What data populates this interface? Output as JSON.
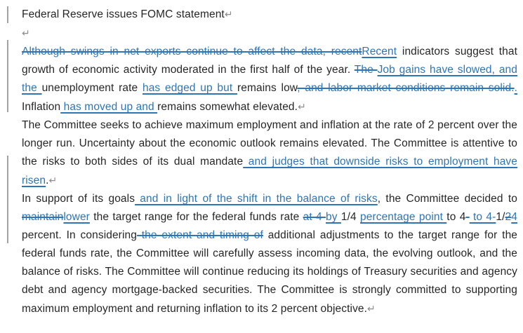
{
  "colors": {
    "text": "#262626",
    "tracked_change": "#2e75b6",
    "paragraph_mark": "#8c8c8c",
    "change_bar": "#a3a3a3",
    "background": "#ffffff"
  },
  "document": {
    "title_text": "Federal Reserve issues FOMC statement",
    "paragraph_mark_glyph": "↵",
    "paragraphs": [
      {
        "name": "title",
        "justify": false,
        "runs": [
          {
            "t": "normal",
            "text": "Federal Reserve issues FOMC statement"
          },
          {
            "t": "mark",
            "text": "↵"
          }
        ]
      },
      {
        "name": "spacer",
        "justify": false,
        "runs": [
          {
            "t": "mark",
            "text": "↵"
          }
        ]
      },
      {
        "name": "body-1",
        "justify": true,
        "runs": [
          {
            "t": "deleted",
            "text": "Although swings in net exports continue to affect the data, recent"
          },
          {
            "t": "inserted",
            "text": "Recent"
          },
          {
            "t": "normal",
            "text": " indicators suggest that growth of economic activity moderated in the first half of the year. "
          },
          {
            "t": "deleted",
            "text": "The "
          },
          {
            "t": "inserted",
            "text": "Job gains have slowed, and the "
          },
          {
            "t": "normal",
            "text": "unemployment rate "
          },
          {
            "t": "inserted",
            "text": "has edged up but "
          },
          {
            "t": "normal",
            "text": "remains low"
          },
          {
            "t": "deleted",
            "text": ", and labor market conditions remain solid."
          },
          {
            "t": "inserted",
            "text": "."
          },
          {
            "t": "normal",
            "text": " Inflation"
          },
          {
            "t": "inserted",
            "text": " has moved up and "
          },
          {
            "t": "normal",
            "text": "remains somewhat elevated."
          },
          {
            "t": "mark",
            "text": "↵"
          }
        ]
      },
      {
        "name": "body-2",
        "justify": true,
        "runs": [
          {
            "t": "normal",
            "text": "The Committee seeks to achieve maximum employment and inflation at the rate of 2 percent over the longer run. Uncertainty about the economic outlook remains elevated. The Committee is attentive to the risks to both sides of its dual mandate"
          },
          {
            "t": "inserted",
            "text": " and judges that downside risks to employment have risen"
          },
          {
            "t": "normal",
            "text": "."
          },
          {
            "t": "mark",
            "text": "↵"
          }
        ]
      },
      {
        "name": "body-3",
        "justify": true,
        "runs": [
          {
            "t": "normal",
            "text": "In support of its goals"
          },
          {
            "t": "inserted",
            "text": " and in light of the shift in the balance of risks"
          },
          {
            "t": "normal",
            "text": ", the Committee decided to "
          },
          {
            "t": "deleted",
            "text": "maintain"
          },
          {
            "t": "inserted",
            "text": "lower"
          },
          {
            "t": "normal",
            "text": " the target range for the federal funds rate "
          },
          {
            "t": "deleted",
            "text": "at 4-"
          },
          {
            "t": "inserted",
            "text": "by "
          },
          {
            "t": "normal",
            "text": "1/4 "
          },
          {
            "t": "inserted",
            "text": "percentage point "
          },
          {
            "t": "normal",
            "text": "to 4"
          },
          {
            "t": "deleted",
            "text": "-"
          },
          {
            "t": "inserted",
            "text": " to 4-"
          },
          {
            "t": "normal",
            "text": "1/"
          },
          {
            "t": "deleted",
            "text": "2"
          },
          {
            "t": "inserted",
            "text": "4"
          },
          {
            "t": "normal",
            "text": " percent. In considering"
          },
          {
            "t": "deleted",
            "text": " the extent and timing of"
          },
          {
            "t": "normal",
            "text": " additional adjustments to the target range for the federal funds rate, the Committee will carefully assess incoming data, the evolving outlook, and the balance of risks. The Committee will continue reducing its holdings of Treasury securities and agency debt and agency mortgage-backed securities. The Committee is strongly committed to supporting maximum employment and returning inflation to its 2 percent objective."
          },
          {
            "t": "mark",
            "text": "↵"
          }
        ]
      }
    ]
  }
}
